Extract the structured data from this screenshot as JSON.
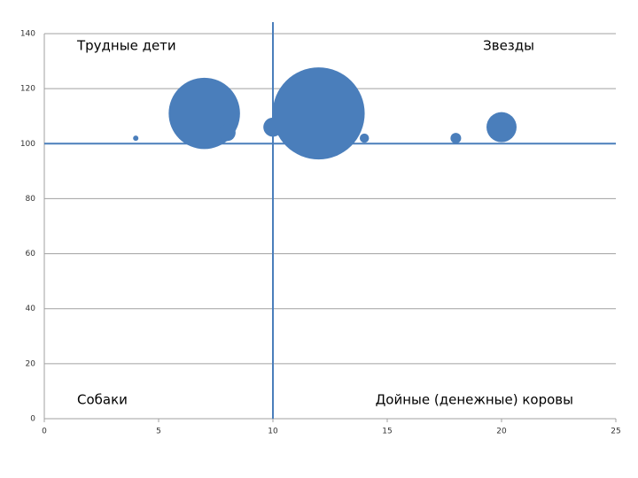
{
  "chart_data": {
    "type": "bubble",
    "annotations": [
      "Трудные дети",
      "Звезды",
      "Собаки",
      "Дойные (денежные) коровы"
    ],
    "series": [
      {
        "color": "#4a7ebb",
        "x": [
          4,
          7,
          8,
          10,
          12,
          14,
          18,
          20
        ],
        "values": [
          102,
          111,
          104,
          106,
          111,
          102,
          102,
          106
        ],
        "sizes": [
          1,
          180,
          10,
          13,
          300,
          3,
          4,
          32
        ]
      }
    ],
    "divider_x": 10,
    "divider_y": 100,
    "divider_color": "#4a7ebb",
    "xlim": [
      0,
      25
    ],
    "xticks": [
      0,
      5,
      10,
      15,
      20,
      25
    ],
    "ylim": [
      0,
      140
    ],
    "yticks": [
      0,
      20,
      40,
      60,
      80,
      100,
      120,
      140
    ],
    "grid": true
  }
}
